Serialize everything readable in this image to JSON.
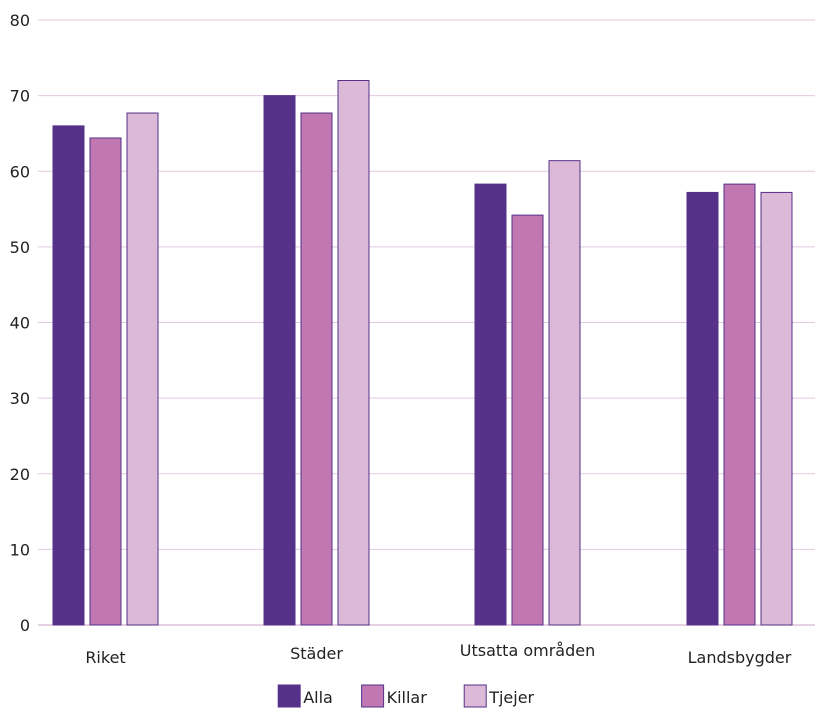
{
  "chart_data": {
    "type": "bar",
    "title": "",
    "xlabel": "",
    "ylabel": "",
    "categories": [
      "Riket",
      "Städer",
      "Utsatta områden",
      "Landsbygder"
    ],
    "series": [
      {
        "name": "Alla",
        "color": "#55318a",
        "values": [
          66,
          70,
          58.3,
          57.2
        ]
      },
      {
        "name": "Killar",
        "color": "#c177b1",
        "values": [
          64.4,
          67.7,
          54.2,
          58.3
        ]
      },
      {
        "name": "Tjejer",
        "color": "#dcb9d6",
        "values": [
          67.7,
          72,
          61.4,
          57.2
        ]
      }
    ],
    "ylim": [
      0,
      80
    ],
    "yticks": [
      0,
      10,
      20,
      30,
      40,
      50,
      60,
      70,
      80
    ],
    "grid": true,
    "legend": "bottom-center"
  }
}
